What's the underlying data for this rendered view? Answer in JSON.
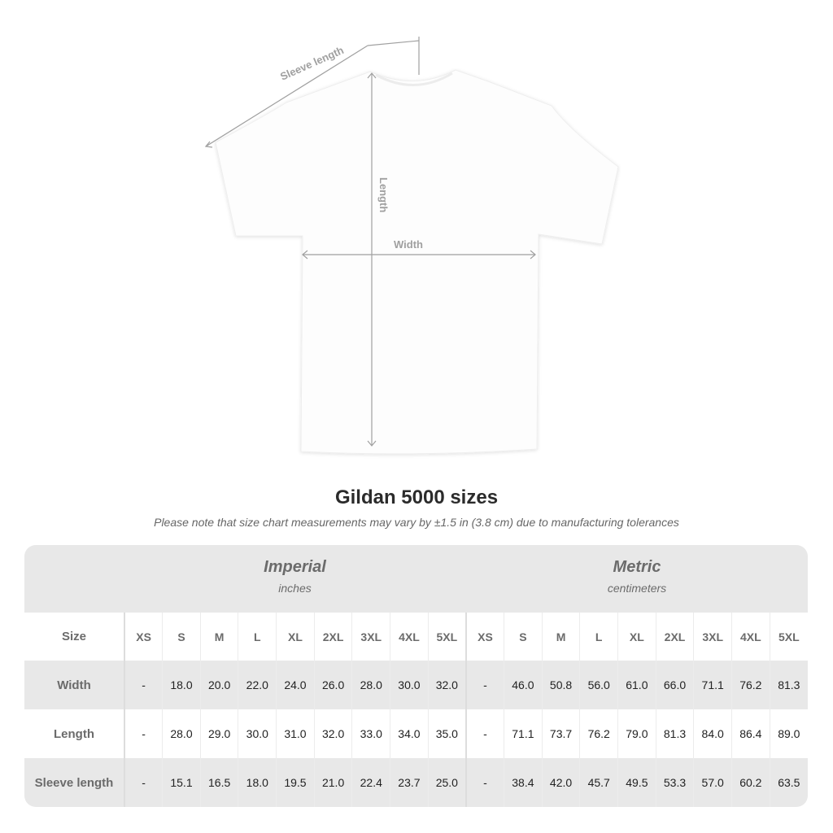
{
  "diagram": {
    "sleeve_label": "Sleeve length",
    "length_label": "Length",
    "width_label": "Width"
  },
  "title": "Gildan 5000 sizes",
  "note": "Please note that size chart measurements may vary by ±1.5 in (3.8 cm) due to manufacturing tolerances",
  "imperial": {
    "name": "Imperial",
    "unit": "inches"
  },
  "metric": {
    "name": "Metric",
    "unit": "centimeters"
  },
  "size_label": "Size",
  "sizes": [
    "XS",
    "S",
    "M",
    "L",
    "XL",
    "2XL",
    "3XL",
    "4XL",
    "5XL"
  ],
  "rows": [
    {
      "label": "Width",
      "imperial": [
        "-",
        "18.0",
        "20.0",
        "22.0",
        "24.0",
        "26.0",
        "28.0",
        "30.0",
        "32.0"
      ],
      "metric": [
        "-",
        "46.0",
        "50.8",
        "56.0",
        "61.0",
        "66.0",
        "71.1",
        "76.2",
        "81.3"
      ]
    },
    {
      "label": "Length",
      "imperial": [
        "-",
        "28.0",
        "29.0",
        "30.0",
        "31.0",
        "32.0",
        "33.0",
        "34.0",
        "35.0"
      ],
      "metric": [
        "-",
        "71.1",
        "73.7",
        "76.2",
        "79.0",
        "81.3",
        "84.0",
        "86.4",
        "89.0"
      ]
    },
    {
      "label": "Sleeve length",
      "imperial": [
        "-",
        "15.1",
        "16.5",
        "18.0",
        "19.5",
        "21.0",
        "22.4",
        "23.7",
        "25.0"
      ],
      "metric": [
        "-",
        "38.4",
        "42.0",
        "45.7",
        "49.5",
        "53.3",
        "57.0",
        "60.2",
        "63.5"
      ]
    }
  ],
  "colors": {
    "panel": "#e8e8e8",
    "label": "#6b6b6b",
    "measure": "#a0a0a0"
  }
}
